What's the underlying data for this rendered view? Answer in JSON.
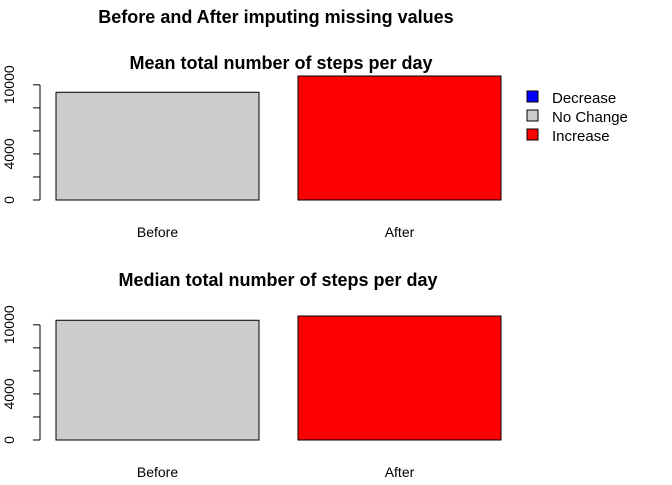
{
  "title": "Before and After imputing missing values",
  "legend": {
    "placement": "right",
    "items": [
      {
        "label": "Decrease",
        "color": "#0000FF"
      },
      {
        "label": "No Change",
        "color": "#CCCCCC"
      },
      {
        "label": "Increase",
        "color": "#FF0000"
      }
    ]
  },
  "chart_data": [
    {
      "type": "bar",
      "title": "Mean total number of steps per day",
      "categories": [
        "Before",
        "After"
      ],
      "values": [
        9354,
        10766
      ],
      "colors": [
        "#CCCCCC",
        "#FF0000"
      ],
      "yticks": [
        "0",
        "4000",
        "10000"
      ],
      "ytick_values": [
        0,
        2000,
        4000,
        6000,
        8000,
        10000
      ],
      "ylim": [
        0,
        10766
      ]
    },
    {
      "type": "bar",
      "title": "Median total number of steps per day",
      "categories": [
        "Before",
        "After"
      ],
      "values": [
        10395,
        10766
      ],
      "colors": [
        "#CCCCCC",
        "#FF0000"
      ],
      "yticks": [
        "0",
        "4000",
        "10000"
      ],
      "ytick_values": [
        0,
        2000,
        4000,
        6000,
        8000,
        10000
      ],
      "ylim": [
        0,
        10766
      ]
    }
  ]
}
